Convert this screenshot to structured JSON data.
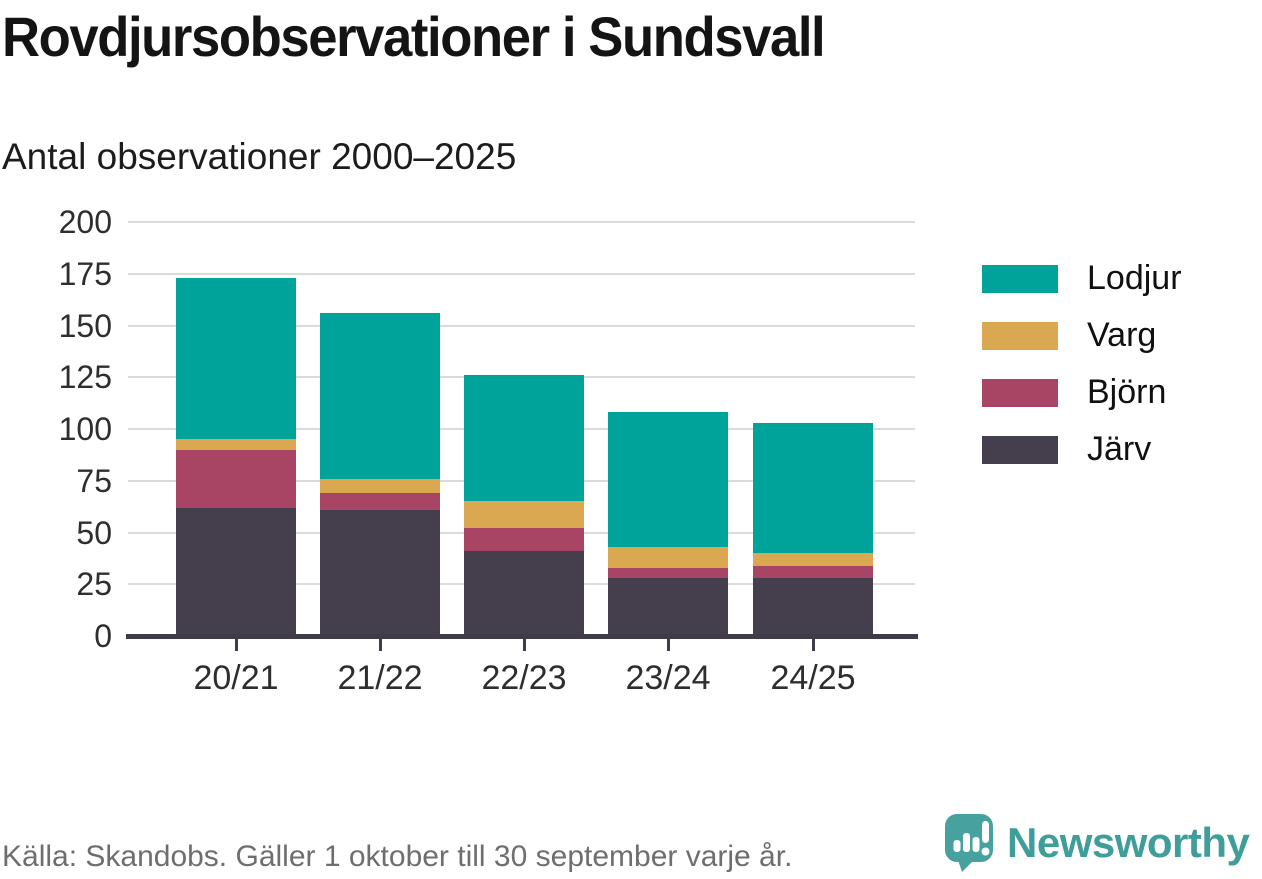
{
  "header": {
    "title": "Rovdjursobservationer i Sundsvall",
    "subtitle": "Antal observationer 2000–2025"
  },
  "chart_data": {
    "type": "bar",
    "stacked": true,
    "title": "Rovdjursobservationer i Sundsvall",
    "subtitle": "Antal observationer 2000–2025",
    "categories": [
      "20/21",
      "21/22",
      "22/23",
      "23/24",
      "24/25"
    ],
    "series": [
      {
        "name": "Järv",
        "key": "jarv",
        "color": "#443e4d",
        "values": [
          62,
          61,
          41,
          28,
          28
        ]
      },
      {
        "name": "Björn",
        "key": "bjorn",
        "color": "#a84464",
        "values": [
          28,
          8,
          11,
          5,
          6
        ]
      },
      {
        "name": "Varg",
        "key": "varg",
        "color": "#d9a850",
        "values": [
          5,
          7,
          13,
          10,
          6
        ]
      },
      {
        "name": "Lodjur",
        "key": "lodjur",
        "color": "#00a39a",
        "values": [
          78,
          80,
          61,
          65,
          63
        ]
      }
    ],
    "totals": [
      173,
      156,
      126,
      108,
      103
    ],
    "legend": [
      "Lodjur",
      "Varg",
      "Björn",
      "Järv"
    ],
    "legend_position": "right",
    "stack_order_bottom_to_top": [
      "Järv",
      "Björn",
      "Varg",
      "Lodjur"
    ],
    "xlabel": "",
    "ylabel": "",
    "ylim": [
      0,
      200
    ],
    "yticks": [
      0,
      25,
      50,
      75,
      100,
      125,
      150,
      175,
      200
    ],
    "grid": true
  },
  "footer": {
    "source": "Källa: Skandobs. Gäller 1 oktober till 30 september varje år.",
    "brand": "Newsworthy"
  },
  "colors": {
    "lodjur": "#00a39a",
    "varg": "#d9a850",
    "bjorn": "#a84464",
    "jarv": "#443e4d",
    "gridline": "#dbdbdb",
    "axis": "#3f3c47",
    "footer_text": "#6e6e6e",
    "brand_teal": "#3f9e99"
  }
}
